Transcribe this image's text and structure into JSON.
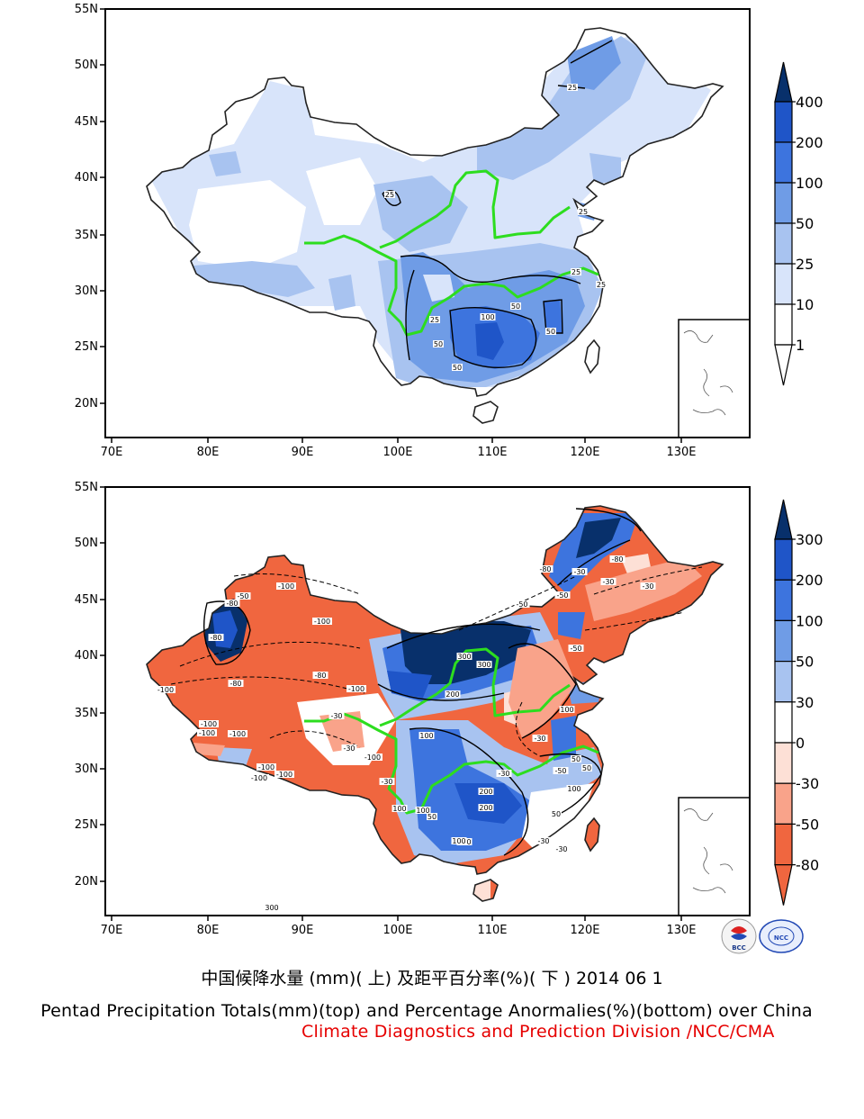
{
  "figure": {
    "caption_cn": "中国候降水量 (mm)( 上) 及距平百分率(%)( 下 ) 2014 06 1",
    "caption_en": "Pentad Precipitation Totals(mm)(top) and Percentage Anormalies(%)(bottom) over China",
    "organization": "Climate Diagnostics and Prediction Division /NCC/CMA"
  },
  "axes": {
    "lat_labels": [
      "55N",
      "50N",
      "45N",
      "40N",
      "35N",
      "30N",
      "25N",
      "20N"
    ],
    "lon_labels": [
      "70E",
      "80E",
      "90E",
      "100E",
      "110E",
      "120E",
      "130E"
    ]
  },
  "top_panel": {
    "variable": "Precipitation total (mm)",
    "colorbar": {
      "levels": [
        "400",
        "200",
        "100",
        "50",
        "25",
        "10",
        "1"
      ],
      "colors": [
        "#08306b",
        "#1f55c8",
        "#3d74de",
        "#6f9ce6",
        "#a8c3f0",
        "#d8e4fa",
        "#ffffff"
      ]
    },
    "contour_labels": [
      "25",
      "25",
      "25",
      "25",
      "25",
      "25",
      "50",
      "50",
      "50",
      "50",
      "100"
    ]
  },
  "bottom_panel": {
    "variable": "Precipitation anomaly (%)",
    "colorbar": {
      "levels": [
        "300",
        "200",
        "100",
        "50",
        "30",
        "0",
        "-30",
        "-50",
        "-80"
      ],
      "colors": [
        "#08306b",
        "#1f55c8",
        "#3d74de",
        "#6f9ce6",
        "#a8c3f0",
        "#ffffff",
        "#fde0d6",
        "#f9a38a",
        "#f0663f",
        "#f0663f"
      ]
    },
    "contour_labels": [
      "-50",
      "-80",
      "-100",
      "-80",
      "-80",
      "-30",
      "-50",
      "-100",
      "-80",
      "-50",
      "-50",
      "-30",
      "-30",
      "-100",
      "-100",
      "-100",
      "-100",
      "-30",
      "-30",
      "-100",
      "-100",
      "-100",
      "-80",
      "-100",
      "-100",
      "-50",
      "-80",
      "100",
      "50",
      "100",
      "200",
      "300",
      "300",
      "300",
      "200",
      "100",
      "100",
      "200",
      "100",
      "50",
      "100",
      "-30",
      "-30",
      "-30",
      "-30",
      "-30",
      "50",
      "50",
      "100"
    ]
  },
  "logos": [
    "BCC",
    "NCC"
  ]
}
